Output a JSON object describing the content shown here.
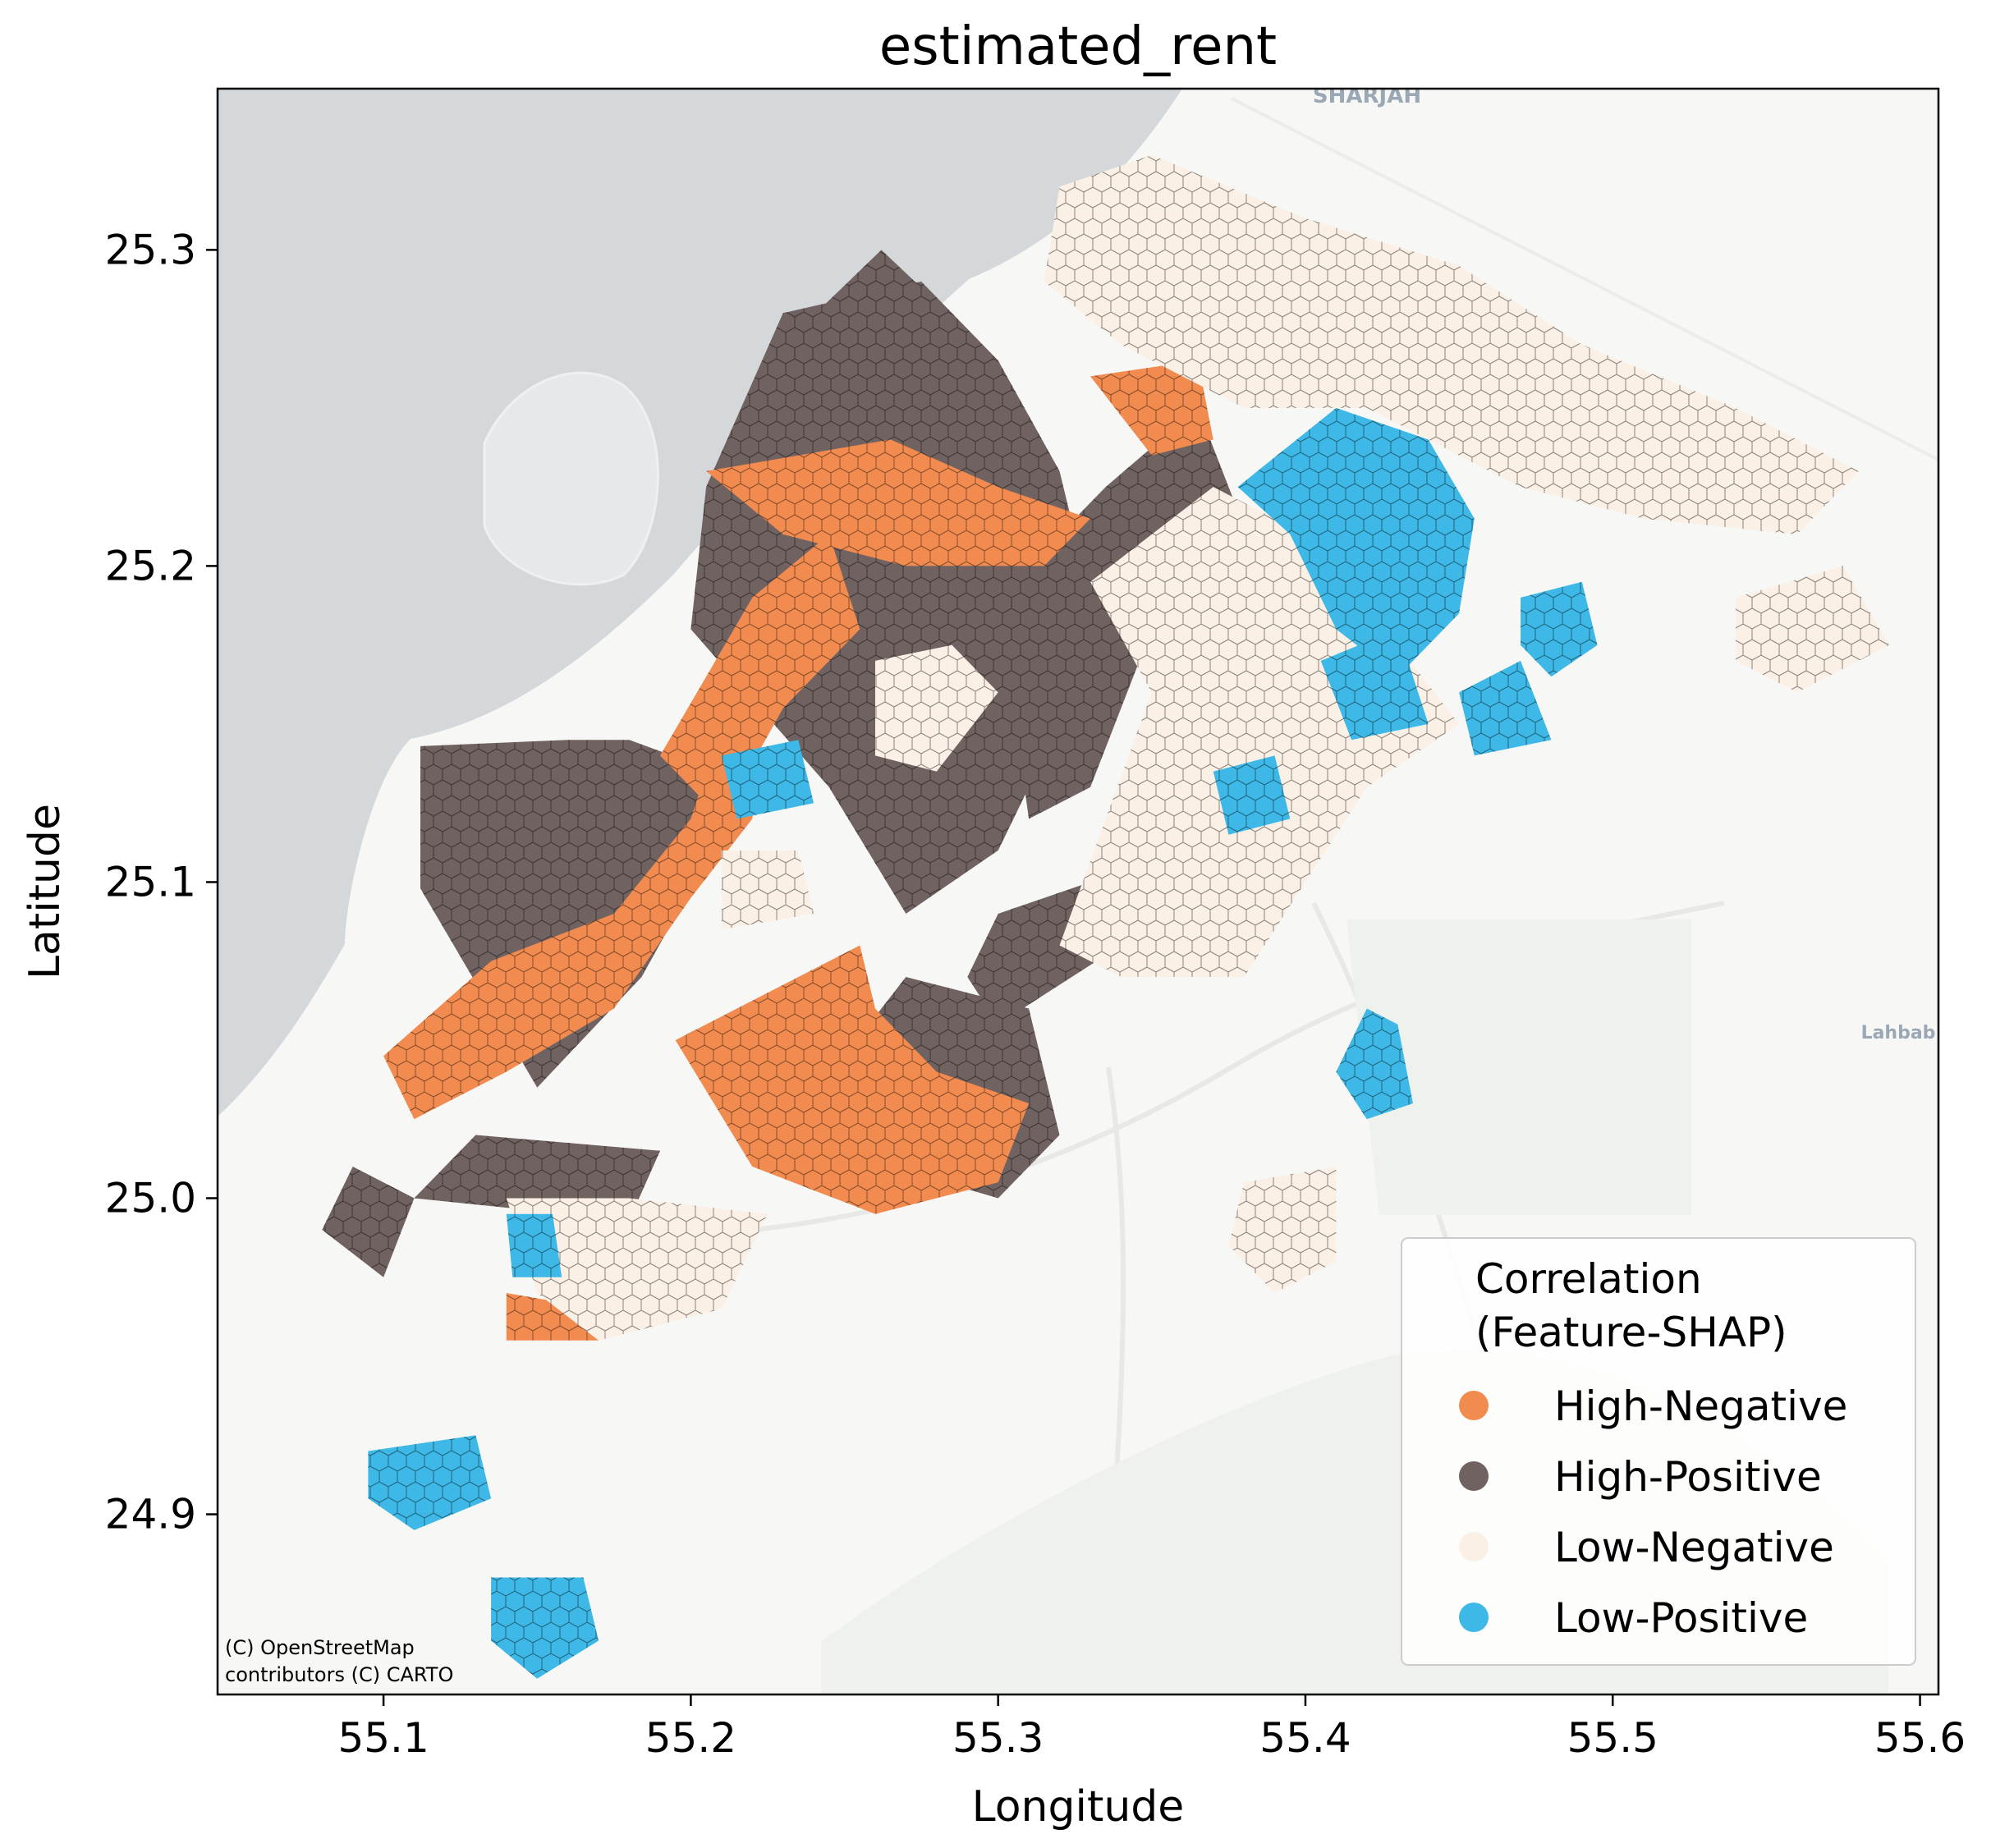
{
  "chart_data": {
    "type": "hexbin-map",
    "title": "estimated_rent",
    "xlabel": "Longitude",
    "ylabel": "Latitude",
    "xlim": [
      55.046,
      55.606
    ],
    "ylim": [
      24.843,
      25.351
    ],
    "xticks": [
      "55.1",
      "55.2",
      "55.3",
      "55.4",
      "55.5",
      "55.6"
    ],
    "xtick_values": [
      55.1,
      55.2,
      55.3,
      55.4,
      55.5,
      55.6
    ],
    "yticks": [
      "24.9",
      "25.0",
      "25.1",
      "25.2",
      "25.3"
    ],
    "ytick_values": [
      24.9,
      25.0,
      25.1,
      25.2,
      25.3
    ],
    "legend": {
      "title_line1": "Correlation",
      "title_line2": "(Feature-SHAP)",
      "placement": "lower-right",
      "entries": [
        {
          "label": "High-Negative",
          "color": "#f28b4f"
        },
        {
          "label": "High-Positive",
          "color": "#6f6260"
        },
        {
          "label": "Low-Negative",
          "color": "#fbf0e6"
        },
        {
          "label": "Low-Positive",
          "color": "#3eb8e6"
        }
      ]
    },
    "map_labels": [
      "SHARJAH",
      "Lahbab"
    ],
    "attribution_line1": "(C) OpenStreetMap",
    "attribution_line2": "contributors (C) CARTO",
    "regions": [
      {
        "category": "High-Positive",
        "polygon": [
          [
            55.112,
            25.143
          ],
          [
            55.112,
            25.098
          ],
          [
            55.15,
            25.035
          ],
          [
            55.184,
            25.07
          ],
          [
            55.204,
            25.105
          ],
          [
            55.208,
            25.135
          ],
          [
            55.18,
            25.145
          ],
          [
            55.16,
            25.145
          ]
        ]
      },
      {
        "category": "High-Positive",
        "polygon": [
          [
            55.2,
            25.18
          ],
          [
            55.205,
            25.225
          ],
          [
            55.23,
            25.28
          ],
          [
            55.275,
            25.29
          ],
          [
            55.3,
            25.265
          ],
          [
            55.32,
            25.23
          ],
          [
            55.33,
            25.19
          ],
          [
            55.32,
            25.15
          ],
          [
            55.3,
            25.11
          ],
          [
            55.27,
            25.09
          ],
          [
            55.245,
            25.13
          ]
        ]
      },
      {
        "category": "High-Positive",
        "polygon": [
          [
            55.23,
            25.27
          ],
          [
            55.262,
            25.3
          ],
          [
            55.3,
            25.265
          ],
          [
            55.262,
            25.255
          ]
        ]
      },
      {
        "category": "High-Positive",
        "polygon": [
          [
            55.3,
            25.19
          ],
          [
            55.335,
            25.225
          ],
          [
            55.365,
            25.25
          ],
          [
            55.377,
            25.22
          ],
          [
            55.35,
            25.18
          ],
          [
            55.33,
            25.13
          ],
          [
            55.31,
            25.12
          ]
        ]
      },
      {
        "category": "High-Positive",
        "polygon": [
          [
            55.23,
            25.02
          ],
          [
            55.3,
            25.0
          ],
          [
            55.32,
            25.02
          ],
          [
            55.31,
            25.06
          ],
          [
            55.27,
            25.07
          ]
        ]
      },
      {
        "category": "High-Positive",
        "polygon": [
          [
            55.11,
            25.0
          ],
          [
            55.18,
            24.993
          ],
          [
            55.19,
            25.015
          ],
          [
            55.13,
            25.02
          ]
        ]
      },
      {
        "category": "High-Positive",
        "polygon": [
          [
            55.08,
            24.99
          ],
          [
            55.1,
            24.975
          ],
          [
            55.11,
            25.0
          ],
          [
            55.09,
            25.01
          ]
        ]
      },
      {
        "category": "High-Positive",
        "polygon": [
          [
            55.3,
            25.055
          ],
          [
            55.34,
            25.08
          ],
          [
            55.33,
            25.1
          ],
          [
            55.3,
            25.09
          ],
          [
            55.29,
            25.07
          ]
        ]
      },
      {
        "category": "High-Negative",
        "polygon": [
          [
            55.205,
            25.23
          ],
          [
            55.265,
            25.24
          ],
          [
            55.3,
            25.225
          ],
          [
            55.33,
            25.215
          ],
          [
            55.315,
            25.2
          ],
          [
            55.27,
            25.2
          ],
          [
            55.23,
            25.21
          ]
        ]
      },
      {
        "category": "High-Negative",
        "polygon": [
          [
            55.1,
            25.045
          ],
          [
            55.135,
            25.075
          ],
          [
            55.175,
            25.09
          ],
          [
            55.2,
            25.12
          ],
          [
            55.21,
            25.15
          ],
          [
            55.225,
            25.16
          ],
          [
            55.22,
            25.12
          ],
          [
            55.2,
            25.095
          ],
          [
            55.175,
            25.06
          ],
          [
            55.14,
            25.04
          ],
          [
            55.11,
            25.025
          ]
        ]
      },
      {
        "category": "High-Negative",
        "polygon": [
          [
            55.195,
            25.05
          ],
          [
            55.255,
            25.08
          ],
          [
            55.26,
            25.06
          ],
          [
            55.28,
            25.04
          ],
          [
            55.31,
            25.03
          ],
          [
            55.3,
            25.005
          ],
          [
            55.26,
            24.995
          ],
          [
            55.22,
            25.01
          ]
        ]
      },
      {
        "category": "High-Negative",
        "polygon": [
          [
            55.19,
            25.14
          ],
          [
            55.22,
            25.19
          ],
          [
            55.245,
            25.21
          ],
          [
            55.255,
            25.18
          ],
          [
            55.23,
            25.155
          ],
          [
            55.21,
            25.12
          ]
        ]
      },
      {
        "category": "High-Negative",
        "polygon": [
          [
            55.33,
            25.26
          ],
          [
            55.365,
            25.265
          ],
          [
            55.37,
            25.24
          ],
          [
            55.35,
            25.235
          ]
        ]
      },
      {
        "category": "High-Negative",
        "polygon": [
          [
            55.14,
            24.97
          ],
          [
            55.17,
            24.965
          ],
          [
            55.17,
            24.955
          ],
          [
            55.14,
            24.955
          ]
        ]
      },
      {
        "category": "Low-Negative",
        "polygon": [
          [
            55.32,
            25.32
          ],
          [
            55.35,
            25.33
          ],
          [
            55.4,
            25.31
          ],
          [
            55.45,
            25.295
          ],
          [
            55.49,
            25.27
          ],
          [
            55.54,
            25.25
          ],
          [
            55.58,
            25.23
          ],
          [
            55.56,
            25.21
          ],
          [
            55.51,
            25.215
          ],
          [
            55.47,
            25.225
          ],
          [
            55.42,
            25.25
          ],
          [
            55.38,
            25.25
          ],
          [
            55.34,
            25.27
          ],
          [
            55.315,
            25.29
          ]
        ]
      },
      {
        "category": "Low-Negative",
        "polygon": [
          [
            55.33,
            25.195
          ],
          [
            55.37,
            25.225
          ],
          [
            55.4,
            25.21
          ],
          [
            55.43,
            25.175
          ],
          [
            55.45,
            25.15
          ],
          [
            55.42,
            25.13
          ],
          [
            55.4,
            25.1
          ],
          [
            55.38,
            25.07
          ],
          [
            55.34,
            25.07
          ],
          [
            55.32,
            25.08
          ],
          [
            55.335,
            25.12
          ],
          [
            55.35,
            25.16
          ]
        ]
      },
      {
        "category": "Low-Negative",
        "polygon": [
          [
            55.54,
            25.19
          ],
          [
            55.575,
            25.2
          ],
          [
            55.59,
            25.175
          ],
          [
            55.56,
            25.16
          ],
          [
            55.54,
            25.17
          ]
        ]
      },
      {
        "category": "Low-Negative",
        "polygon": [
          [
            55.14,
            25.0
          ],
          [
            55.18,
            25.0
          ],
          [
            55.225,
            24.995
          ],
          [
            55.21,
            24.965
          ],
          [
            55.17,
            24.955
          ],
          [
            55.15,
            24.97
          ]
        ]
      },
      {
        "category": "Low-Negative",
        "polygon": [
          [
            55.26,
            25.17
          ],
          [
            55.285,
            25.175
          ],
          [
            55.3,
            25.16
          ],
          [
            55.28,
            25.135
          ],
          [
            55.26,
            25.14
          ]
        ]
      },
      {
        "category": "Low-Negative",
        "polygon": [
          [
            55.21,
            25.11
          ],
          [
            55.235,
            25.11
          ],
          [
            55.24,
            25.09
          ],
          [
            55.21,
            25.085
          ]
        ]
      },
      {
        "category": "Low-Negative",
        "polygon": [
          [
            55.38,
            25.005
          ],
          [
            55.41,
            25.01
          ],
          [
            55.41,
            24.98
          ],
          [
            55.39,
            24.97
          ],
          [
            55.375,
            24.985
          ]
        ]
      },
      {
        "category": "Low-Positive",
        "polygon": [
          [
            55.378,
            25.225
          ],
          [
            55.41,
            25.25
          ],
          [
            55.44,
            25.24
          ],
          [
            55.455,
            25.215
          ],
          [
            55.45,
            25.185
          ],
          [
            55.43,
            25.165
          ],
          [
            55.41,
            25.18
          ],
          [
            55.395,
            25.21
          ]
        ]
      },
      {
        "category": "Low-Positive",
        "polygon": [
          [
            55.405,
            25.17
          ],
          [
            55.43,
            25.18
          ],
          [
            55.44,
            25.15
          ],
          [
            55.415,
            25.145
          ]
        ]
      },
      {
        "category": "Low-Positive",
        "polygon": [
          [
            55.45,
            25.16
          ],
          [
            55.47,
            25.17
          ],
          [
            55.48,
            25.145
          ],
          [
            55.455,
            25.14
          ]
        ]
      },
      {
        "category": "Low-Positive",
        "polygon": [
          [
            55.47,
            25.19
          ],
          [
            55.49,
            25.195
          ],
          [
            55.495,
            25.175
          ],
          [
            55.48,
            25.165
          ],
          [
            55.47,
            25.175
          ]
        ]
      },
      {
        "category": "Low-Positive",
        "polygon": [
          [
            55.37,
            25.135
          ],
          [
            55.39,
            25.14
          ],
          [
            55.395,
            25.12
          ],
          [
            55.375,
            25.115
          ]
        ]
      },
      {
        "category": "Low-Positive",
        "polygon": [
          [
            55.42,
            25.06
          ],
          [
            55.43,
            25.055
          ],
          [
            55.435,
            25.03
          ],
          [
            55.42,
            25.025
          ],
          [
            55.41,
            25.04
          ]
        ]
      },
      {
        "category": "Low-Positive",
        "polygon": [
          [
            55.095,
            24.92
          ],
          [
            55.13,
            24.925
          ],
          [
            55.135,
            24.905
          ],
          [
            55.11,
            24.895
          ],
          [
            55.095,
            24.905
          ]
        ]
      },
      {
        "category": "Low-Positive",
        "polygon": [
          [
            55.135,
            24.88
          ],
          [
            55.165,
            24.88
          ],
          [
            55.17,
            24.86
          ],
          [
            55.15,
            24.848
          ],
          [
            55.135,
            24.86
          ]
        ]
      },
      {
        "category": "Low-Positive",
        "polygon": [
          [
            55.21,
            25.14
          ],
          [
            55.235,
            25.145
          ],
          [
            55.24,
            25.125
          ],
          [
            55.215,
            25.12
          ]
        ]
      },
      {
        "category": "Low-Positive",
        "polygon": [
          [
            55.14,
            24.995
          ],
          [
            55.155,
            24.995
          ],
          [
            55.158,
            24.975
          ],
          [
            55.142,
            24.975
          ]
        ]
      }
    ]
  }
}
